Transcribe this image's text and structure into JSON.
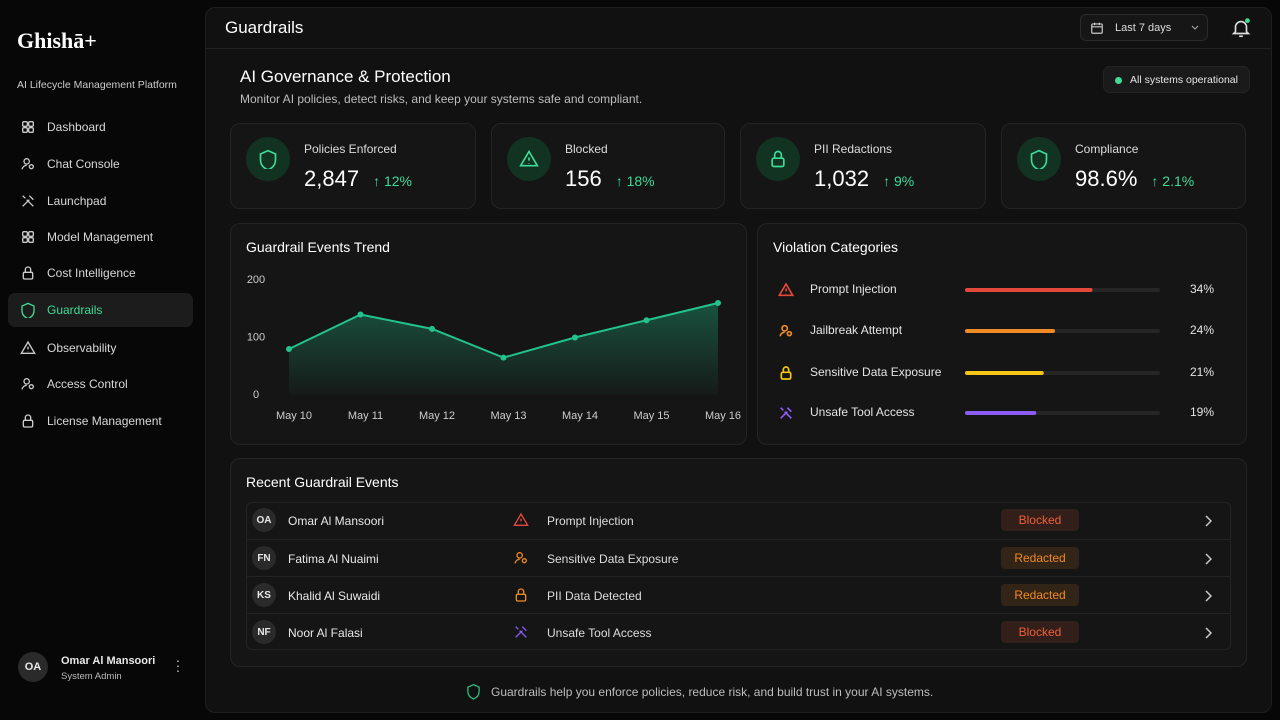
{
  "sidebar": {
    "brand": "Ghishā+",
    "tagline": "AI Lifecycle Management Platform",
    "nav": [
      {
        "label": "Dashboard"
      },
      {
        "label": "Chat Console"
      },
      {
        "label": "Launchpad"
      },
      {
        "label": "Model Management"
      },
      {
        "label": "Cost Intelligence"
      },
      {
        "label": "Guardrails",
        "active": true
      },
      {
        "label": "Observability"
      },
      {
        "label": "Access Control"
      },
      {
        "label": "License Management"
      }
    ],
    "user": {
      "initials": "OA",
      "name": "Omar Al Mansoori",
      "role": "System Admin"
    }
  },
  "header": {
    "title": "Guardrails",
    "date_range": "Last 7 days"
  },
  "intro": {
    "title": "AI Governance & Protection",
    "subtitle": "Monitor AI policies, detect risks, and keep your systems safe and compliant.",
    "status": "All systems operational"
  },
  "stats": [
    {
      "label": "Policies Enforced",
      "value": "2,847",
      "change": "12%"
    },
    {
      "label": "Blocked",
      "value": "156",
      "change": "18%"
    },
    {
      "label": "PII Redactions",
      "value": "1,032",
      "change": "9%"
    },
    {
      "label": "Compliance",
      "value": "98.6%",
      "change": "2.1%"
    }
  ],
  "chart_data": [
    {
      "type": "line",
      "title": "Guardrail Events Trend",
      "categories": [
        "May 10",
        "May 11",
        "May 12",
        "May 13",
        "May 14",
        "May 15",
        "May 16"
      ],
      "values": [
        80,
        140,
        115,
        65,
        100,
        130,
        160
      ],
      "color": "#22c38e",
      "ylim": [
        0,
        200
      ],
      "yticks": [
        0,
        100,
        200
      ]
    },
    {
      "type": "bar",
      "orientation": "horizontal",
      "title": "Violation Categories",
      "categories": [
        "Prompt Injection",
        "Jailbreak Attempt",
        "Sensitive Data Exposure",
        "Unsafe Tool Access"
      ],
      "values": [
        34,
        24,
        21,
        19
      ],
      "value_labels": [
        "34%",
        "24%",
        "21%",
        "19%"
      ],
      "colors": [
        "#e5483b",
        "#f08a24",
        "#f5c518",
        "#8b5cf6"
      ],
      "xlim": [
        0,
        52
      ]
    }
  ],
  "events": {
    "title": "Recent Guardrail Events",
    "rows": [
      {
        "initials": "OA",
        "name": "Omar Al Mansoori",
        "event": "Prompt Injection",
        "status": "Blocked",
        "status_color": "#f0603a"
      },
      {
        "initials": "FN",
        "name": "Fatima Al Nuaimi",
        "event": "Sensitive Data Exposure",
        "status": "Redacted",
        "status_color": "#f08a24"
      },
      {
        "initials": "KS",
        "name": "Khalid Al Suwaidi",
        "event": "PII Data Detected",
        "status": "Redacted",
        "status_color": "#f08a24"
      },
      {
        "initials": "NF",
        "name": "Noor Al Falasi",
        "event": "Unsafe Tool Access",
        "status": "Blocked",
        "status_color": "#f0603a"
      }
    ]
  },
  "footer": "Guardrails help you enforce policies, reduce risk, and build trust in your AI systems."
}
